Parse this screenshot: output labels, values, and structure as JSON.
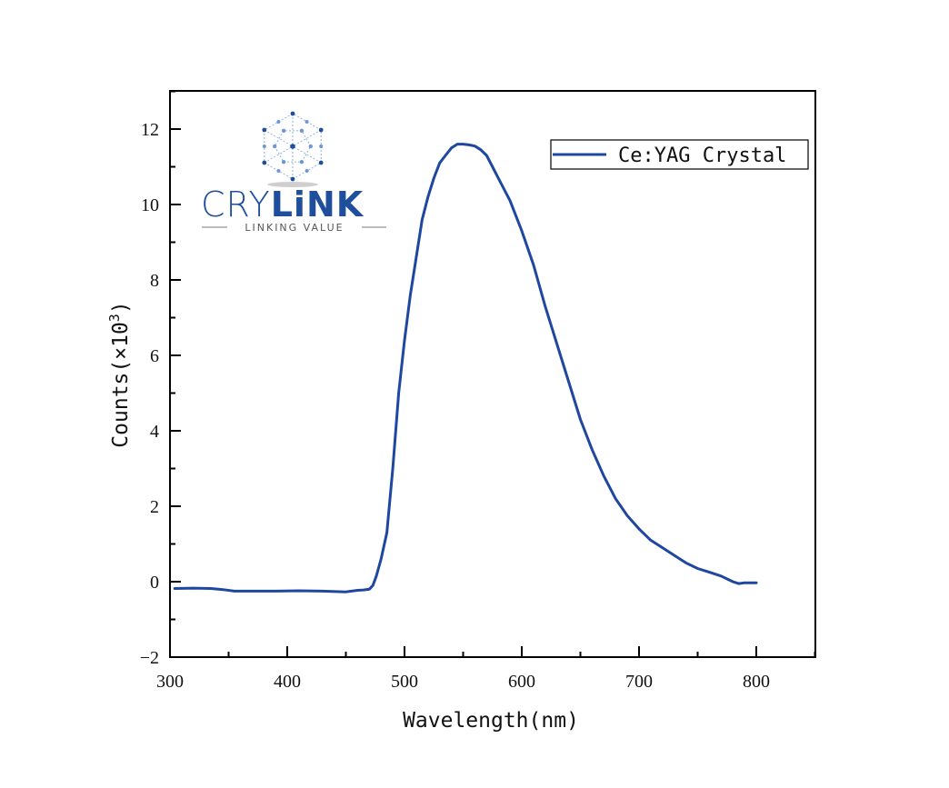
{
  "chart_data": {
    "type": "line",
    "title": "",
    "xlabel": "Wavelength(nm)",
    "ylabel": "Counts(×10³)",
    "xlim": [
      300,
      850
    ],
    "ylim": [
      -2,
      13
    ],
    "x_ticks": [
      300,
      400,
      500,
      600,
      700,
      800
    ],
    "y_ticks": [
      -2,
      0,
      2,
      4,
      6,
      8,
      10,
      12
    ],
    "grid": false,
    "legend_position": "upper right",
    "series": [
      {
        "name": "Ce:YAG Crystal",
        "color": "#1f47a0",
        "x": [
          304,
          320,
          335,
          345,
          355,
          370,
          390,
          410,
          430,
          450,
          460,
          465,
          470,
          473,
          476,
          480,
          485,
          490,
          495,
          500,
          505,
          510,
          515,
          520,
          525,
          530,
          535,
          540,
          545,
          550,
          555,
          560,
          565,
          570,
          575,
          580,
          590,
          600,
          610,
          620,
          630,
          640,
          650,
          660,
          670,
          680,
          690,
          700,
          710,
          720,
          730,
          740,
          750,
          760,
          770,
          780,
          785,
          790,
          800
        ],
        "y": [
          -0.18,
          -0.17,
          -0.18,
          -0.21,
          -0.25,
          -0.25,
          -0.25,
          -0.24,
          -0.25,
          -0.27,
          -0.23,
          -0.22,
          -0.2,
          -0.1,
          0.15,
          0.6,
          1.3,
          3.0,
          5.0,
          6.4,
          7.6,
          8.6,
          9.6,
          10.2,
          10.7,
          11.1,
          11.3,
          11.5,
          11.6,
          11.6,
          11.58,
          11.55,
          11.45,
          11.3,
          11.0,
          10.7,
          10.1,
          9.3,
          8.4,
          7.3,
          6.3,
          5.3,
          4.3,
          3.5,
          2.8,
          2.2,
          1.75,
          1.4,
          1.1,
          0.9,
          0.7,
          0.5,
          0.35,
          0.25,
          0.15,
          0.0,
          -0.05,
          -0.03,
          -0.03
        ]
      }
    ],
    "annotations": []
  },
  "logo": {
    "brand_thin": "CRY",
    "brand_bold": "LiNK",
    "tagline": "LINKING VALUE"
  },
  "legend": {
    "label": "Ce:YAG Crystal"
  },
  "axes": {
    "xlabel": "Wavelength(nm)",
    "ylabel_main": "Counts(",
    "ylabel_x": "×10",
    "ylabel_exp": "3",
    "ylabel_close": ")"
  }
}
